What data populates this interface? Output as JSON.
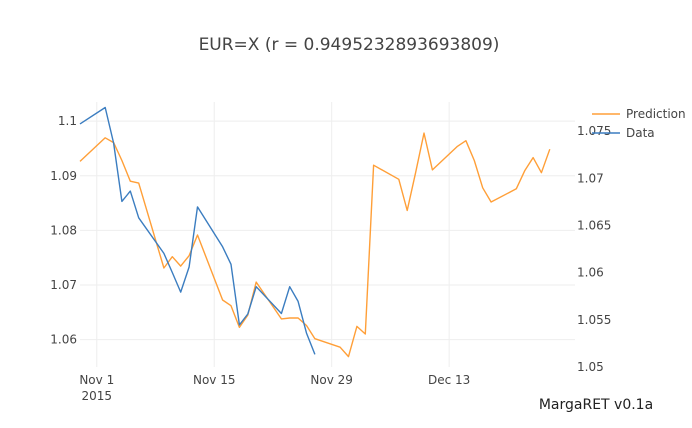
{
  "chart_data": {
    "type": "line",
    "title": "EUR=X (r = 0.9495232893693809)",
    "footer": "MargaRET v0.1a",
    "xaxis": {
      "type": "date",
      "range": [
        "2015-10-30",
        "2015-12-28"
      ],
      "ticks": [
        {
          "value": "2015-11-01",
          "label": "Nov 1",
          "sublabel": "2015"
        },
        {
          "value": "2015-11-15",
          "label": "Nov 15",
          "sublabel": ""
        },
        {
          "value": "2015-11-29",
          "label": "Nov 29",
          "sublabel": ""
        },
        {
          "value": "2015-12-13",
          "label": "Dec 13",
          "sublabel": ""
        }
      ]
    },
    "yaxis_left": {
      "range": [
        1.055,
        1.1035
      ],
      "ticks": [
        {
          "value": 1.06,
          "label": "1.06"
        },
        {
          "value": 1.07,
          "label": "1.07"
        },
        {
          "value": 1.08,
          "label": "1.08"
        },
        {
          "value": 1.09,
          "label": "1.09"
        },
        {
          "value": 1.1,
          "label": "1.1"
        }
      ]
    },
    "yaxis_right": {
      "range": [
        1.05,
        1.0781
      ],
      "ticks": [
        {
          "value": 1.05,
          "label": "1.05"
        },
        {
          "value": 1.055,
          "label": "1.055"
        },
        {
          "value": 1.06,
          "label": "1.06"
        },
        {
          "value": 1.065,
          "label": "1.065"
        },
        {
          "value": 1.07,
          "label": "1.07"
        },
        {
          "value": 1.075,
          "label": "1.075"
        }
      ]
    },
    "legend": {
      "placement": "top-right"
    },
    "grid": true,
    "series": [
      {
        "name": "Prediction",
        "color": "#ff9f38",
        "axis": "right",
        "points": [
          [
            "2015-10-30",
            1.0718
          ],
          [
            "2015-11-02",
            1.0743
          ],
          [
            "2015-11-03",
            1.0738
          ],
          [
            "2015-11-04",
            1.0719
          ],
          [
            "2015-11-05",
            1.0697
          ],
          [
            "2015-11-06",
            1.0695
          ],
          [
            "2015-11-09",
            1.0605
          ],
          [
            "2015-11-10",
            1.0617
          ],
          [
            "2015-11-11",
            1.0607
          ],
          [
            "2015-11-12",
            1.0618
          ],
          [
            "2015-11-13",
            1.064
          ],
          [
            "2015-11-16",
            1.0571
          ],
          [
            "2015-11-17",
            1.0565
          ],
          [
            "2015-11-18",
            1.0542
          ],
          [
            "2015-11-19",
            1.0555
          ],
          [
            "2015-11-20",
            1.059
          ],
          [
            "2015-11-23",
            1.0551
          ],
          [
            "2015-11-24",
            1.0552
          ],
          [
            "2015-11-25",
            1.0552
          ],
          [
            "2015-11-26",
            1.0544
          ],
          [
            "2015-11-27",
            1.053
          ],
          [
            "2015-11-30",
            1.0521
          ],
          [
            "2015-12-01",
            1.0511
          ],
          [
            "2015-12-02",
            1.0543
          ],
          [
            "2015-12-03",
            1.0535
          ],
          [
            "2015-12-04",
            1.0714
          ],
          [
            "2015-12-07",
            1.0699
          ],
          [
            "2015-12-08",
            1.0666
          ],
          [
            "2015-12-09",
            1.0706
          ],
          [
            "2015-12-10",
            1.0748
          ],
          [
            "2015-12-11",
            1.0709
          ],
          [
            "2015-12-14",
            1.0734
          ],
          [
            "2015-12-15",
            1.074
          ],
          [
            "2015-12-16",
            1.0719
          ],
          [
            "2015-12-17",
            1.069
          ],
          [
            "2015-12-18",
            1.0675
          ],
          [
            "2015-12-21",
            1.0689
          ],
          [
            "2015-12-22",
            1.0708
          ],
          [
            "2015-12-23",
            1.0722
          ],
          [
            "2015-12-24",
            1.0706
          ],
          [
            "2015-12-25",
            1.0731
          ]
        ]
      },
      {
        "name": "Data",
        "color": "#3b7dc0",
        "axis": "left",
        "points": [
          [
            "2015-10-30",
            1.0995
          ],
          [
            "2015-11-02",
            1.1025
          ],
          [
            "2015-11-03",
            1.096
          ],
          [
            "2015-11-04",
            1.0853
          ],
          [
            "2015-11-05",
            1.0872
          ],
          [
            "2015-11-06",
            1.0823
          ],
          [
            "2015-11-09",
            1.0758
          ],
          [
            "2015-11-10",
            1.0723
          ],
          [
            "2015-11-11",
            1.0687
          ],
          [
            "2015-11-12",
            1.0733
          ],
          [
            "2015-11-13",
            1.0843
          ],
          [
            "2015-11-16",
            1.077
          ],
          [
            "2015-11-17",
            1.0738
          ],
          [
            "2015-11-18",
            1.0627
          ],
          [
            "2015-11-19",
            1.0647
          ],
          [
            "2015-11-20",
            1.0697
          ],
          [
            "2015-11-23",
            1.0648
          ],
          [
            "2015-11-24",
            1.0697
          ],
          [
            "2015-11-25",
            1.067
          ],
          [
            "2015-11-26",
            1.0612
          ],
          [
            "2015-11-27",
            1.0573
          ]
        ]
      }
    ]
  }
}
